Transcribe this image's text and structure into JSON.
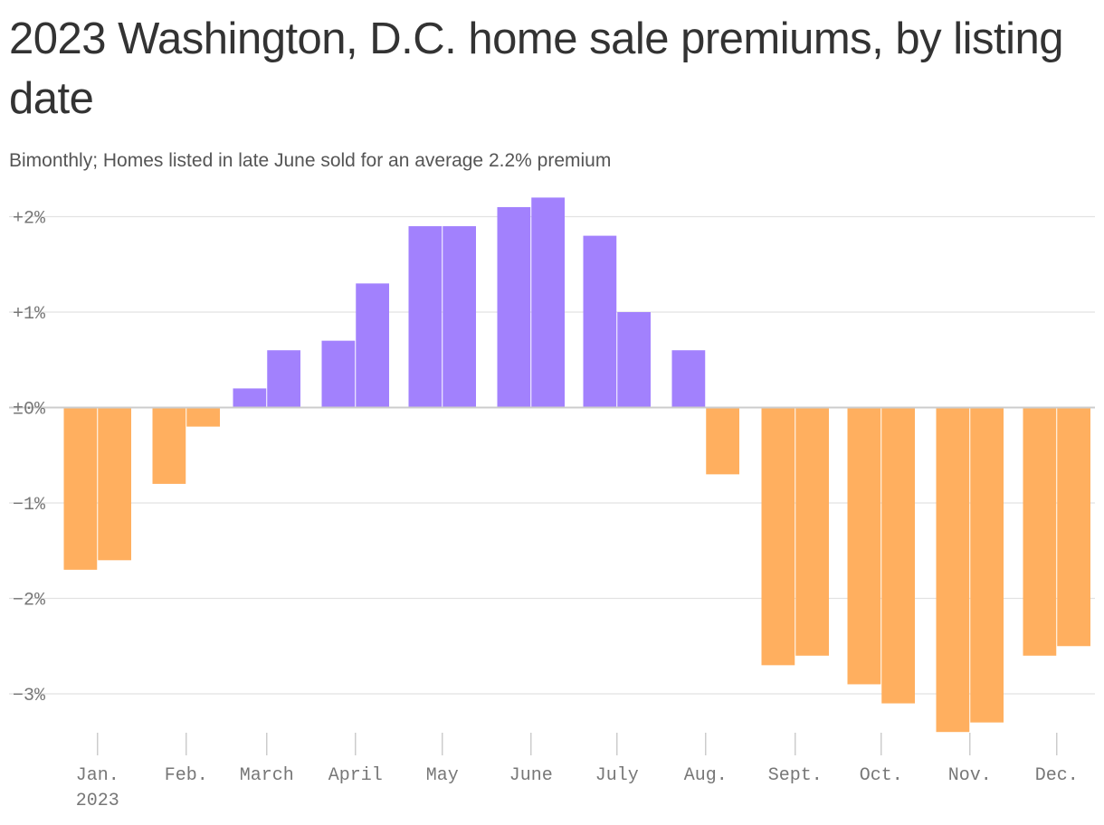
{
  "chart_data": {
    "type": "bar",
    "title": "2023 Washington, D.C. home sale premiums, by listing date",
    "subtitle": "Bimonthly; Homes listed in late June sold for an average 2.2% premium",
    "ylim": [
      -3.5,
      2.2
    ],
    "y_ticks": [
      {
        "value": 2,
        "label": "+2%"
      },
      {
        "value": 1,
        "label": "+1%"
      },
      {
        "value": 0,
        "label": "±0%"
      },
      {
        "value": -1,
        "label": "−1%"
      },
      {
        "value": -2,
        "label": "−2%"
      },
      {
        "value": -3,
        "label": "−3%"
      }
    ],
    "month_labels": [
      "Jan.",
      "Feb.",
      "March",
      "April",
      "May",
      "June",
      "July",
      "Aug.",
      "Sept.",
      "Oct.",
      "Nov.",
      "Dec."
    ],
    "year_label": "2023",
    "x": [
      "Jan. early",
      "Jan. late",
      "Feb. early",
      "Feb. late",
      "March early",
      "March late",
      "April early",
      "April late",
      "May early",
      "May late",
      "June early",
      "June late",
      "July early",
      "July late",
      "Aug. early",
      "Aug. late",
      "Sept. early",
      "Sept. late",
      "Oct. early",
      "Oct. late",
      "Nov. early",
      "Nov. late",
      "Dec. early",
      "Dec. late"
    ],
    "values": [
      -1.7,
      -1.6,
      -0.8,
      -0.2,
      0.2,
      0.6,
      0.7,
      1.3,
      1.9,
      1.9,
      2.1,
      2.2,
      1.8,
      1.0,
      0.6,
      -0.7,
      -2.7,
      -2.6,
      -2.9,
      -3.1,
      -3.4,
      -3.3,
      -2.6,
      -2.5
    ],
    "colors": {
      "positive": "#a281fd",
      "negative": "#ffaf5f"
    },
    "grid": true
  }
}
